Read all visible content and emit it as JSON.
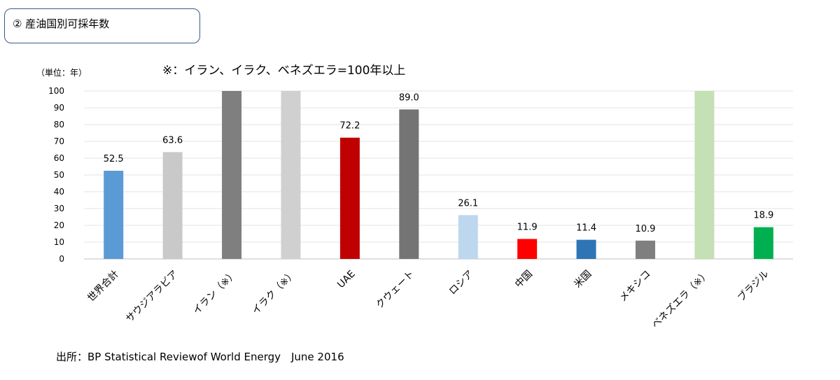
{
  "section": {
    "title": "② 産油国別可採年数"
  },
  "unit_label": "（単位：年）",
  "note": "※：イラン、イラク、ベネズエラ=100年以上",
  "source": "出所：BP Statistical Reviewof World Energy　June 2016",
  "chart_data": {
    "type": "bar",
    "title": "",
    "xlabel": "",
    "ylabel": "",
    "ylim": [
      0,
      100
    ],
    "yticks": [
      0,
      10,
      20,
      30,
      40,
      50,
      60,
      70,
      80,
      90,
      100
    ],
    "grid": true,
    "categories": [
      "世界合計",
      "サウジアラビア",
      "イラン（※）",
      "イラク（※）",
      "UAE",
      "クウェート",
      "ロシア",
      "中国",
      "米国",
      "メキシコ",
      "ベネズエラ（※）",
      "ブラジル"
    ],
    "values": [
      52.5,
      63.6,
      100,
      100,
      72.2,
      89.0,
      26.1,
      11.9,
      11.4,
      10.9,
      100,
      18.9
    ],
    "data_labels": [
      "52.5",
      "63.6",
      "",
      "",
      "72.2",
      "89.0",
      "26.1",
      "11.9",
      "11.4",
      "10.9",
      "",
      "18.9"
    ],
    "colors": [
      "#5b9bd5",
      "#c9c9c9",
      "#7f7f7f",
      "#d0d0d0",
      "#c00000",
      "#747474",
      "#bdd7ee",
      "#ff0000",
      "#2e75b6",
      "#7f7f7f",
      "#c5e0b4",
      "#00b050"
    ]
  }
}
